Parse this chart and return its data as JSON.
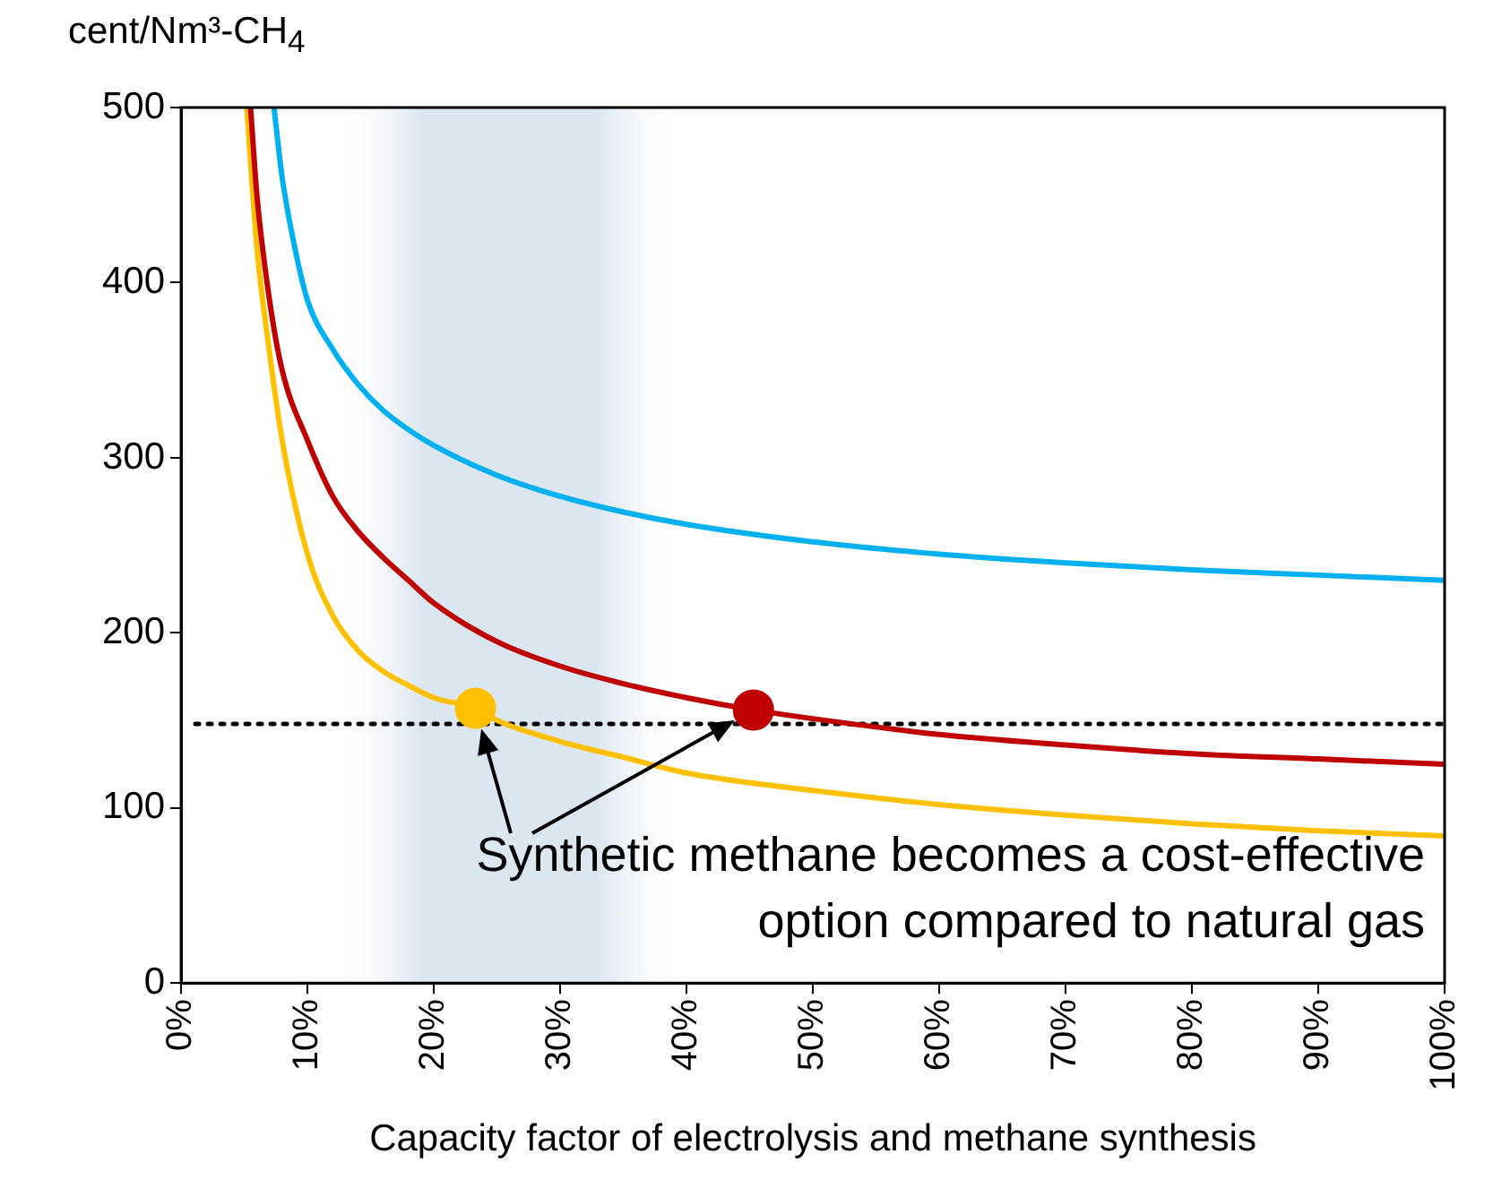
{
  "chart_data": {
    "type": "line",
    "ylabel": "cent/Nm³-CH$_{4}$",
    "xlabel": "Capacity factor of electrolysis and methane synthesis",
    "xlim": [
      0,
      100
    ],
    "xticks": [
      {
        "value": 0,
        "label": "0%"
      },
      {
        "value": 10,
        "label": "10%"
      },
      {
        "value": 20,
        "label": "20%"
      },
      {
        "value": 30,
        "label": "30%"
      },
      {
        "value": 40,
        "label": "40%"
      },
      {
        "value": 50,
        "label": "50%"
      },
      {
        "value": 60,
        "label": "60%"
      },
      {
        "value": 70,
        "label": "70%"
      },
      {
        "value": 80,
        "label": "80%"
      },
      {
        "value": 90,
        "label": "90%"
      },
      {
        "value": 100,
        "label": "100%"
      }
    ],
    "ylim": [
      0,
      500
    ],
    "yticks": [
      0,
      100,
      200,
      300,
      400,
      500
    ],
    "grid": false,
    "legend": false,
    "marker": "none",
    "line_style": "solid",
    "series": [
      {
        "color": "#00b0f0",
        "x": [
          7.35,
          8,
          9,
          10,
          12,
          14,
          16,
          18,
          20,
          25,
          30,
          35,
          40,
          50,
          60,
          70,
          80,
          90,
          100
        ],
        "values": [
          500,
          460,
          420,
          390,
          362,
          342,
          327,
          316,
          307,
          290,
          278,
          269,
          262,
          252,
          245,
          240,
          236,
          233,
          230
        ]
      },
      {
        "color": "#c00000",
        "x": [
          5.5,
          6,
          7,
          8,
          10,
          12,
          14,
          16,
          18,
          20,
          25,
          30,
          35,
          40,
          45.3,
          50,
          60,
          70,
          80,
          90,
          100
        ],
        "values": [
          500,
          450,
          390,
          350,
          310,
          278,
          258,
          243,
          230,
          217,
          195,
          181,
          171,
          163,
          156,
          151,
          142,
          136,
          131,
          128,
          125
        ]
      },
      {
        "color": "#ffc000",
        "x": [
          5.2,
          6,
          7,
          8,
          10,
          12,
          14,
          16,
          18,
          20,
          23.3,
          25,
          30,
          35,
          40,
          50,
          60,
          70,
          80,
          90,
          100
        ],
        "values": [
          500,
          420,
          360,
          310,
          245,
          210,
          190,
          178,
          170,
          163,
          157,
          150,
          138,
          129,
          120,
          110,
          102,
          96,
          91,
          87,
          84
        ]
      },
      {
        "type": "scatter",
        "marker": "circle",
        "color": "#ffc000",
        "x": [
          23.3
        ],
        "values": [
          157
        ]
      },
      {
        "type": "scatter",
        "marker": "circle",
        "color": "#c00000",
        "x": [
          45.3
        ],
        "values": [
          156
        ]
      }
    ],
    "ref_lines": [
      {
        "axis": "y",
        "value": 148,
        "color": "#000000",
        "line_style": "dotted"
      }
    ],
    "bands": [
      {
        "axis": "x",
        "from": 12,
        "to": 40,
        "color": "#dce6f1"
      }
    ],
    "annotations": [
      {
        "text": "Synthetic methane becomes a cost-effective option compared to natural gas",
        "x": 23.3,
        "y": 157
      }
    ]
  }
}
